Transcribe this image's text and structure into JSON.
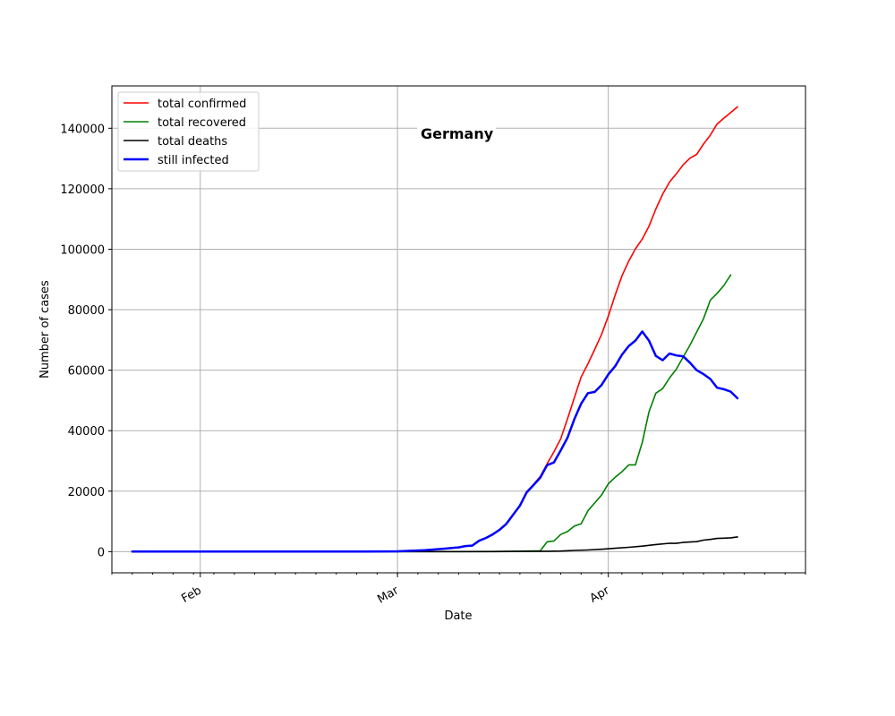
{
  "chart_data": {
    "type": "line",
    "title": "Germany",
    "xlabel": "Date",
    "ylabel": "Number of cases",
    "x_start": "2020-01-22",
    "x_end": "2020-04-24",
    "xlim": [
      "2020-01-19",
      "2020-04-30"
    ],
    "ylim": [
      -7000,
      154000
    ],
    "x_ticks": [
      {
        "label": "Feb",
        "date": "2020-02-01"
      },
      {
        "label": "Mar",
        "date": "2020-03-01"
      },
      {
        "label": "Apr",
        "date": "2020-04-01"
      }
    ],
    "y_ticks": [
      0,
      20000,
      40000,
      60000,
      80000,
      100000,
      120000,
      140000
    ],
    "grid": true,
    "legend_position": "top-left",
    "series": [
      {
        "name": "total confirmed",
        "color": "#ff0000",
        "points": [
          [
            "2020-01-22",
            0
          ],
          [
            "2020-02-01",
            0
          ],
          [
            "2020-02-15",
            0
          ],
          [
            "2020-02-25",
            10
          ],
          [
            "2020-03-01",
            117
          ],
          [
            "2020-03-05",
            482
          ],
          [
            "2020-03-08",
            1040
          ],
          [
            "2020-03-10",
            1457
          ],
          [
            "2020-03-11",
            1908
          ],
          [
            "2020-03-12",
            2078
          ],
          [
            "2020-03-13",
            3675
          ],
          [
            "2020-03-14",
            4585
          ],
          [
            "2020-03-15",
            5795
          ],
          [
            "2020-03-16",
            7272
          ],
          [
            "2020-03-17",
            9257
          ],
          [
            "2020-03-18",
            12327
          ],
          [
            "2020-03-19",
            15320
          ],
          [
            "2020-03-20",
            19848
          ],
          [
            "2020-03-21",
            22213
          ],
          [
            "2020-03-22",
            24873
          ],
          [
            "2020-03-23",
            29056
          ],
          [
            "2020-03-24",
            32986
          ],
          [
            "2020-03-25",
            37323
          ],
          [
            "2020-03-26",
            43938
          ],
          [
            "2020-03-27",
            50871
          ],
          [
            "2020-03-28",
            57695
          ],
          [
            "2020-03-29",
            62095
          ],
          [
            "2020-03-30",
            66885
          ],
          [
            "2020-03-31",
            71808
          ],
          [
            "2020-04-01",
            77872
          ],
          [
            "2020-04-02",
            84794
          ],
          [
            "2020-04-03",
            91159
          ],
          [
            "2020-04-04",
            96092
          ],
          [
            "2020-04-05",
            100123
          ],
          [
            "2020-04-06",
            103374
          ],
          [
            "2020-04-07",
            107663
          ],
          [
            "2020-04-08",
            113296
          ],
          [
            "2020-04-09",
            118181
          ],
          [
            "2020-04-10",
            122171
          ],
          [
            "2020-04-11",
            124908
          ],
          [
            "2020-04-12",
            127854
          ],
          [
            "2020-04-13",
            130072
          ],
          [
            "2020-04-14",
            131359
          ],
          [
            "2020-04-15",
            134753
          ],
          [
            "2020-04-16",
            137698
          ],
          [
            "2020-04-17",
            141397
          ],
          [
            "2020-04-18",
            143342
          ],
          [
            "2020-04-19",
            145184
          ],
          [
            "2020-04-20",
            147065
          ]
        ]
      },
      {
        "name": "total recovered",
        "color": "#008000",
        "points": [
          [
            "2020-01-22",
            0
          ],
          [
            "2020-03-10",
            25
          ],
          [
            "2020-03-15",
            50
          ],
          [
            "2020-03-20",
            180
          ],
          [
            "2020-03-22",
            266
          ],
          [
            "2020-03-23",
            3243
          ],
          [
            "2020-03-24",
            3547
          ],
          [
            "2020-03-25",
            5673
          ],
          [
            "2020-03-26",
            6658
          ],
          [
            "2020-03-27",
            8481
          ],
          [
            "2020-03-28",
            9211
          ],
          [
            "2020-03-29",
            13500
          ],
          [
            "2020-03-30",
            16100
          ],
          [
            "2020-03-31",
            18700
          ],
          [
            "2020-04-01",
            22440
          ],
          [
            "2020-04-02",
            24575
          ],
          [
            "2020-04-03",
            26400
          ],
          [
            "2020-04-04",
            28700
          ],
          [
            "2020-04-05",
            28700
          ],
          [
            "2020-04-06",
            36081
          ],
          [
            "2020-04-07",
            46300
          ],
          [
            "2020-04-08",
            52407
          ],
          [
            "2020-04-09",
            53913
          ],
          [
            "2020-04-10",
            57400
          ],
          [
            "2020-04-11",
            60300
          ],
          [
            "2020-04-12",
            64300
          ],
          [
            "2020-04-13",
            68200
          ],
          [
            "2020-04-14",
            72600
          ],
          [
            "2020-04-15",
            77000
          ],
          [
            "2020-04-16",
            83114
          ],
          [
            "2020-04-17",
            85400
          ],
          [
            "2020-04-18",
            88000
          ],
          [
            "2020-04-19",
            91500
          ]
        ]
      },
      {
        "name": "total deaths",
        "color": "#000000",
        "points": [
          [
            "2020-01-22",
            0
          ],
          [
            "2020-03-08",
            0
          ],
          [
            "2020-03-09",
            2
          ],
          [
            "2020-03-15",
            13
          ],
          [
            "2020-03-20",
            67
          ],
          [
            "2020-03-23",
            123
          ],
          [
            "2020-03-25",
            206
          ],
          [
            "2020-03-27",
            389
          ],
          [
            "2020-03-29",
            560
          ],
          [
            "2020-03-31",
            775
          ],
          [
            "2020-04-02",
            1107
          ],
          [
            "2020-04-04",
            1444
          ],
          [
            "2020-04-06",
            1810
          ],
          [
            "2020-04-08",
            2349
          ],
          [
            "2020-04-10",
            2767
          ],
          [
            "2020-04-11",
            2736
          ],
          [
            "2020-04-12",
            3022
          ],
          [
            "2020-04-13",
            3194
          ],
          [
            "2020-04-14",
            3294
          ],
          [
            "2020-04-15",
            3804
          ],
          [
            "2020-04-16",
            4052
          ],
          [
            "2020-04-17",
            4352
          ],
          [
            "2020-04-18",
            4459
          ],
          [
            "2020-04-19",
            4586
          ],
          [
            "2020-04-20",
            4862
          ]
        ]
      },
      {
        "name": "still infected",
        "color": "#0000ff",
        "points": [
          [
            "2020-01-22",
            0
          ],
          [
            "2020-02-25",
            10
          ],
          [
            "2020-03-01",
            115
          ],
          [
            "2020-03-05",
            470
          ],
          [
            "2020-03-08",
            1000
          ],
          [
            "2020-03-10",
            1400
          ],
          [
            "2020-03-11",
            1850
          ],
          [
            "2020-03-12",
            2000
          ],
          [
            "2020-03-13",
            3600
          ],
          [
            "2020-03-14",
            4500
          ],
          [
            "2020-03-15",
            5700
          ],
          [
            "2020-03-16",
            7200
          ],
          [
            "2020-03-17",
            9150
          ],
          [
            "2020-03-18",
            12200
          ],
          [
            "2020-03-19",
            15200
          ],
          [
            "2020-03-20",
            19600
          ],
          [
            "2020-03-21",
            22000
          ],
          [
            "2020-03-22",
            24500
          ],
          [
            "2020-03-23",
            28600
          ],
          [
            "2020-03-24",
            29500
          ],
          [
            "2020-03-25",
            33500
          ],
          [
            "2020-03-26",
            37700
          ],
          [
            "2020-03-27",
            43800
          ],
          [
            "2020-03-28",
            48900
          ],
          [
            "2020-03-29",
            52400
          ],
          [
            "2020-03-30",
            52800
          ],
          [
            "2020-03-31",
            55100
          ],
          [
            "2020-04-01",
            58600
          ],
          [
            "2020-04-02",
            61300
          ],
          [
            "2020-04-03",
            65100
          ],
          [
            "2020-04-04",
            68000
          ],
          [
            "2020-04-05",
            69800
          ],
          [
            "2020-04-06",
            72800
          ],
          [
            "2020-04-07",
            69700
          ],
          [
            "2020-04-08",
            64700
          ],
          [
            "2020-04-09",
            63300
          ],
          [
            "2020-04-10",
            65500
          ],
          [
            "2020-04-11",
            64900
          ],
          [
            "2020-04-12",
            64600
          ],
          [
            "2020-04-13",
            62500
          ],
          [
            "2020-04-14",
            60000
          ],
          [
            "2020-04-15",
            58700
          ],
          [
            "2020-04-16",
            57100
          ],
          [
            "2020-04-17",
            54200
          ],
          [
            "2020-04-18",
            53700
          ],
          [
            "2020-04-19",
            52900
          ],
          [
            "2020-04-20",
            50700
          ]
        ]
      }
    ]
  }
}
